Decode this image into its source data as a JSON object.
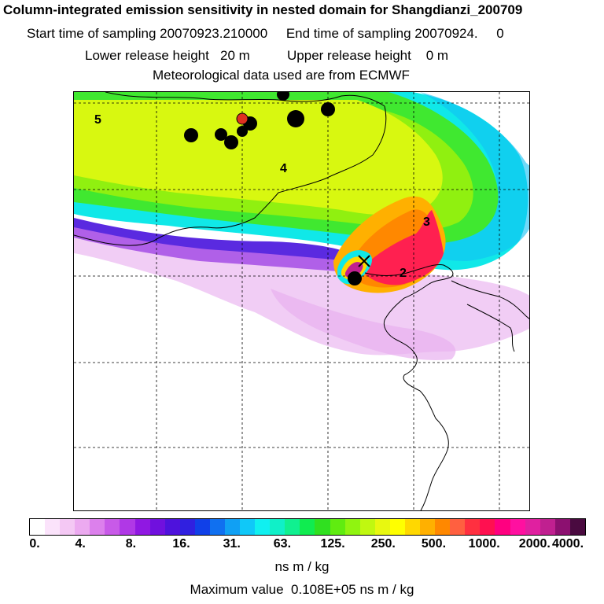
{
  "header": {
    "title": "Column-integrated emission sensitivity in nested domain for Shangdianzi_200709",
    "line2": "Start time of sampling 20070923.210000     End time of sampling 20070924.     0",
    "line3": "Lower release height   20 m          Upper release height    0 m",
    "line4": "Meteorological data used are from ECMWF"
  },
  "chart_data": {
    "type": "heatmap",
    "title": "Column-integrated emission sensitivity in nested domain for Shangdianzi_200709",
    "colorbar": {
      "ticks": [
        "0.",
        "4.",
        "8.",
        "16.",
        "31.",
        "63.",
        "125.",
        "250.",
        "500.",
        "1000.",
        "2000.",
        "4000."
      ],
      "unit_label": "ns m / kg",
      "colors": [
        "#ffffff",
        "#fbe3fb",
        "#f4c8f4",
        "#ecaaf0",
        "#dc80ec",
        "#c85ae8",
        "#b038e6",
        "#9018e2",
        "#7010de",
        "#4e12dc",
        "#3020e0",
        "#1040e8",
        "#1070f0",
        "#10a0f4",
        "#10c8f8",
        "#10f0f0",
        "#10f0c8",
        "#10f090",
        "#10ec50",
        "#30e020",
        "#60ec10",
        "#90f410",
        "#c0f810",
        "#e8f810",
        "#ffff00",
        "#ffd800",
        "#ffb000",
        "#ff8800",
        "#ff6040",
        "#ff3040",
        "#ff1050",
        "#ff0080",
        "#ff10a0",
        "#e020a0",
        "#c02090",
        "#8c1070",
        "#4a0a40"
      ]
    },
    "max_value_text": "Maximum value  0.108E+05 ns m / kg",
    "plume_labels": [
      "5",
      "4",
      "3",
      "2"
    ],
    "receptor_site": "Shangdianzi"
  }
}
